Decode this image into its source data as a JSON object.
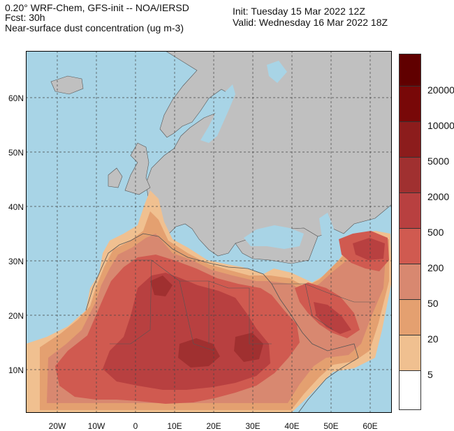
{
  "header": {
    "line1": "0.20° WRF-Chem, GFS-init -- NOA/IERSD",
    "line2": "Fcst: 30h",
    "line3": "Near-surface dust concentration (ug m-3)",
    "init": "Init: Tuesday 15 Mar 2022  12Z",
    "valid": "Valid: Wednesday 16 Mar 2022  18Z"
  },
  "map": {
    "lat_ticks": [
      "60N",
      "50N",
      "40N",
      "30N",
      "20N",
      "10N"
    ],
    "lon_ticks": [
      "20W",
      "10W",
      "0",
      "10E",
      "20E",
      "30E",
      "40E",
      "50E",
      "60E"
    ],
    "colors": {
      "ocean": "#a8d4e6",
      "land": "#c0c0c0",
      "border": "#555555",
      "grid": "#444444"
    }
  },
  "legend": {
    "labels": [
      "20000",
      "10000",
      "5000",
      "2000",
      "500",
      "200",
      "50",
      "20",
      "5"
    ],
    "colors": [
      "#ffffff",
      "#f0c090",
      "#e4a070",
      "#d88870",
      "#d05a50",
      "#b84040",
      "#a03030",
      "#8c1c1c",
      "#780808",
      "#600000",
      "#d01010"
    ]
  }
}
